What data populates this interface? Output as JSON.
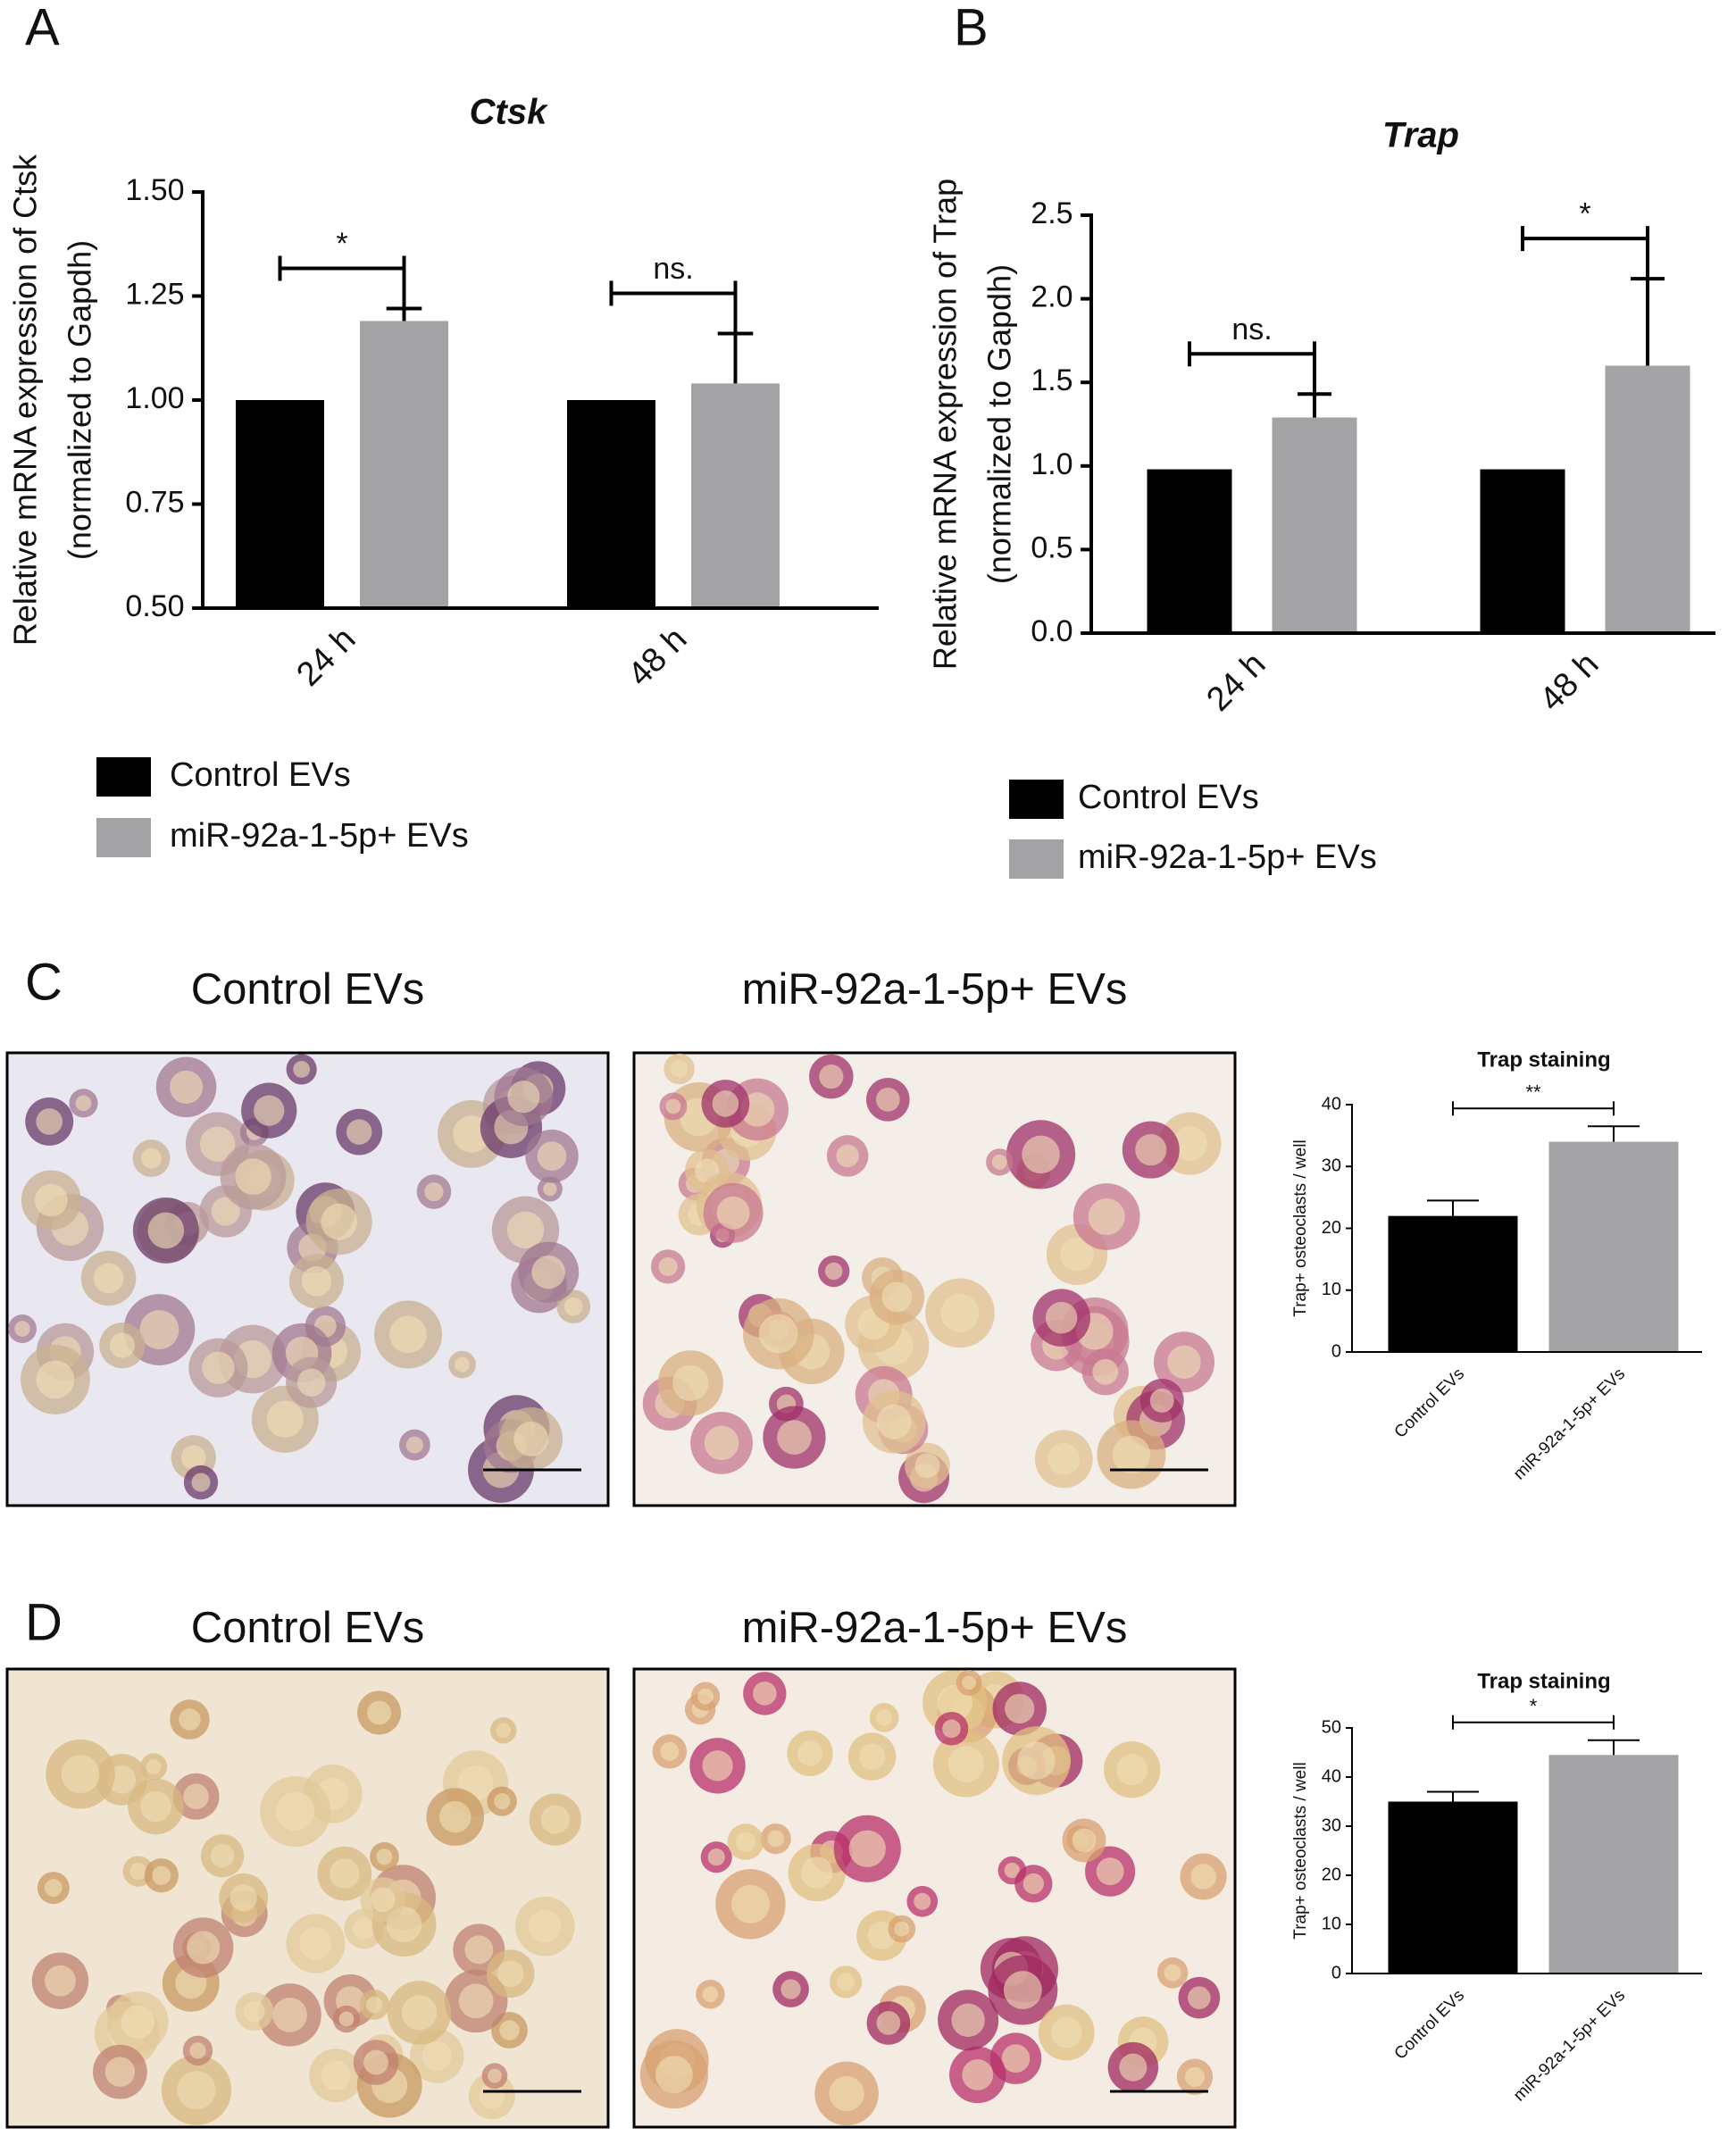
{
  "chart_data": [
    {
      "type": "bar",
      "panel": "A",
      "title": "Ctsk",
      "ylabel": [
        "Relative mRNA expression of Ctsk",
        "(normalized to Gapdh)"
      ],
      "categories": [
        "24 h",
        "48 h"
      ],
      "series": [
        {
          "name": "Control EVs",
          "color": "#000000",
          "values": [
            1.0,
            1.0
          ]
        },
        {
          "name": "miR-92a-1-5p+ EVs",
          "color": "#a3a3a6",
          "values": [
            1.19,
            1.04
          ],
          "errors": [
            0.03,
            0.12
          ]
        }
      ],
      "significance": [
        "*",
        "ns."
      ],
      "ylim": [
        0.5,
        1.5
      ],
      "yticks": [
        {
          "value": 0.5,
          "label": "0.50"
        },
        0.75,
        {
          "value": 1,
          "label": "1.00"
        },
        1.25,
        {
          "value": 1.5,
          "label": "1.50"
        }
      ]
    },
    {
      "type": "bar",
      "panel": "B",
      "title": "Trap",
      "ylabel": [
        "Relative mRNA expression of Trap",
        "(normalized to Gapdh)"
      ],
      "categories": [
        "24 h",
        "48 h"
      ],
      "series": [
        {
          "name": "Control EVs",
          "color": "#000000",
          "values": [
            0.98,
            0.98
          ]
        },
        {
          "name": "miR-92a-1-5p+ EVs",
          "color": "#a3a3a6",
          "values": [
            1.29,
            1.6
          ],
          "errors": [
            0.14,
            0.52
          ]
        }
      ],
      "significance": [
        "ns.",
        "*"
      ],
      "ylim": [
        0,
        2.5
      ],
      "yticks": [
        {
          "value": 0,
          "label": "0.0"
        },
        0.5,
        {
          "value": 1,
          "label": "1.0"
        },
        1.5,
        {
          "value": 2,
          "label": "2.0"
        },
        2.5
      ]
    },
    {
      "type": "simplebar",
      "panel": "C",
      "image_titles": [
        "Control EVs",
        "miR-92a-1-5p+ EVs"
      ],
      "title": "Trap staining",
      "ylabel": [
        "Trap+ osteoclasts / well"
      ],
      "categories": [
        "Control EVs",
        "miR-92a-1-5p+ EVs"
      ],
      "values": [
        22,
        34
      ],
      "errors": [
        2.5,
        2.5
      ],
      "colors": [
        "#000000",
        "#a3a3a6"
      ],
      "significance": "**",
      "ylim": [
        0,
        40
      ],
      "yticks": [
        0,
        10,
        20,
        30,
        40
      ]
    },
    {
      "type": "simplebar",
      "panel": "D",
      "image_titles": [
        "Control EVs",
        "miR-92a-1-5p+ EVs"
      ],
      "title": "Trap staining",
      "ylabel": [
        "Trap+ osteoclasts / well"
      ],
      "categories": [
        "Control EVs",
        "miR-92a-1-5p+ EVs"
      ],
      "values": [
        35,
        44.5
      ],
      "errors": [
        2,
        3
      ],
      "colors": [
        "#000000",
        "#a3a3a6"
      ],
      "significance": "*",
      "ylim": [
        0,
        50
      ],
      "yticks": [
        0,
        10,
        20,
        30,
        40,
        50
      ]
    }
  ]
}
